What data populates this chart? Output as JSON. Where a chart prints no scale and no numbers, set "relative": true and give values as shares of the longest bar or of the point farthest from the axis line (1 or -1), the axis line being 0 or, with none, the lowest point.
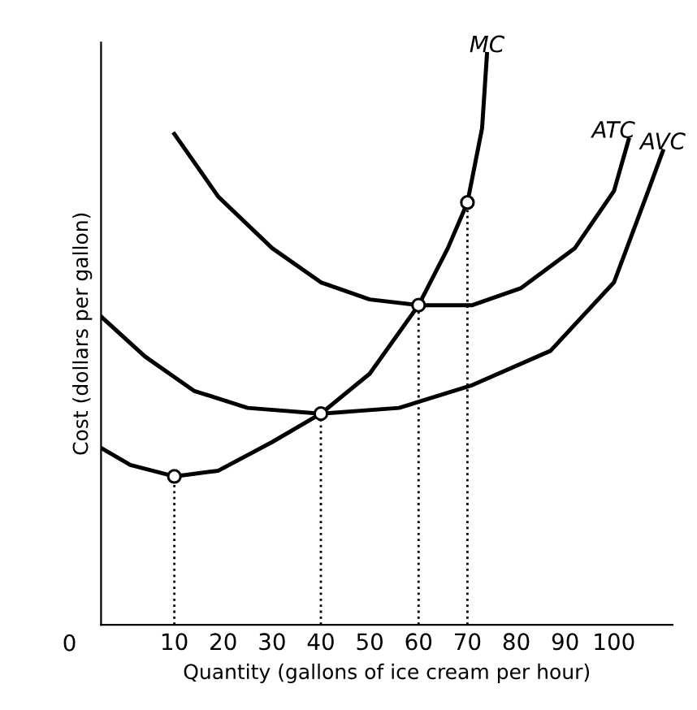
{
  "chart_data": {
    "type": "line",
    "relative": true,
    "xlabel": "Quantity (gallons of ice cream per hour)",
    "ylabel": "Cost (dollars per gallon)",
    "xlim": [
      -5,
      112
    ],
    "xticks": [
      10,
      20,
      30,
      40,
      50,
      60,
      70,
      80,
      90,
      100
    ],
    "annotations": [
      "0"
    ],
    "legend": false,
    "grid": false,
    "line_style": "solid",
    "series": [
      {
        "name": "MC",
        "color": "#000000",
        "x": [
          -5,
          1,
          10,
          19,
          30,
          40,
          50,
          60,
          66,
          70,
          73,
          74
        ],
        "values": [
          0.31,
          0.28,
          0.26,
          0.27,
          0.32,
          0.37,
          0.44,
          0.56,
          0.66,
          0.74,
          0.87,
          1.0
        ]
      },
      {
        "name": "ATC",
        "color": "#000000",
        "x": [
          10,
          19,
          30,
          40,
          50,
          60,
          71,
          81,
          92,
          100,
          103
        ],
        "values": [
          0.86,
          0.75,
          0.66,
          0.6,
          0.57,
          0.56,
          0.56,
          0.59,
          0.66,
          0.76,
          0.85
        ]
      },
      {
        "name": "AVC",
        "color": "#000000",
        "x": [
          -5,
          4,
          14,
          25,
          40,
          56,
          71,
          87,
          100,
          107,
          110
        ],
        "values": [
          0.54,
          0.47,
          0.41,
          0.38,
          0.37,
          0.38,
          0.42,
          0.48,
          0.6,
          0.76,
          0.83
        ]
      },
      {
        "type": "scatter",
        "marker": "circle",
        "color": "#000000",
        "x": [
          10,
          40,
          60,
          70
        ],
        "values": [
          0.26,
          0.37,
          0.56,
          0.74
        ]
      }
    ],
    "ref_lines": [
      {
        "axis": "x",
        "value": 10,
        "line_style": "dotted"
      },
      {
        "axis": "x",
        "value": 40,
        "line_style": "dotted"
      },
      {
        "axis": "x",
        "value": 60,
        "line_style": "dotted"
      },
      {
        "axis": "x",
        "value": 70,
        "line_style": "dotted"
      }
    ]
  }
}
